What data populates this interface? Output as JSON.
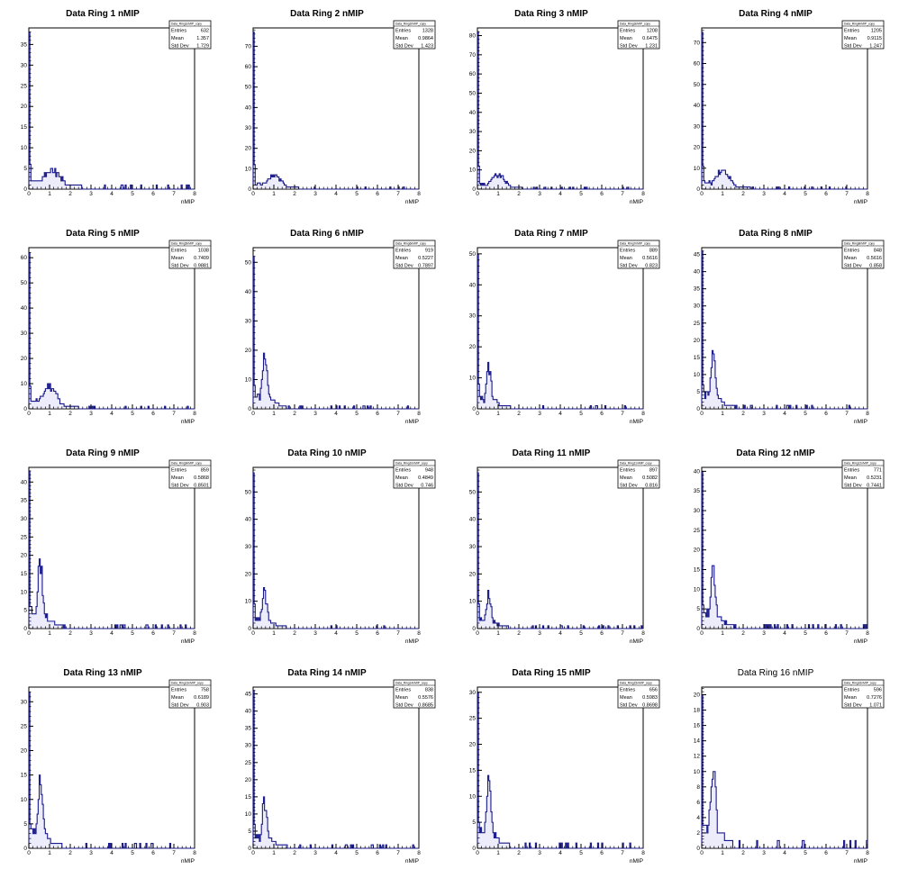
{
  "colors": {
    "hist_line": "#1a1a8c",
    "hist_fill": "#c8c8f0",
    "axis": "#000000",
    "background": "#ffffff"
  },
  "chart_data": [
    {
      "type": "bar",
      "title": "Data Ring 1 nMIP",
      "xlabel": "nMIP",
      "xlim": [
        0,
        8
      ],
      "ylim": [
        0,
        39
      ],
      "yticks": [
        0,
        5,
        10,
        15,
        20,
        25,
        30,
        35
      ],
      "xticks": [
        0,
        1,
        2,
        3,
        4,
        5,
        6,
        7,
        8
      ],
      "stats": {
        "name": "Data_Ring1nMIP_copy",
        "entries": "632",
        "mean": "1.357",
        "stddev": "1.729"
      },
      "shape": "r1",
      "peak0": 38,
      "bump_y": 4.5
    },
    {
      "type": "bar",
      "title": "Data Ring 2 nMIP",
      "xlabel": "nMIP",
      "xlim": [
        0,
        8
      ],
      "ylim": [
        0,
        79
      ],
      "yticks": [
        0,
        10,
        20,
        30,
        40,
        50,
        60,
        70
      ],
      "xticks": [
        0,
        1,
        2,
        3,
        4,
        5,
        6,
        7,
        8
      ],
      "stats": {
        "name": "Data_Ring2nMIP_copy",
        "entries": "1328",
        "mean": "0.9864",
        "stddev": "1.423"
      },
      "shape": "wide",
      "peak0": 77,
      "bump_y": 7
    },
    {
      "type": "bar",
      "title": "Data Ring 3 nMIP",
      "xlabel": "nMIP",
      "xlim": [
        0,
        8
      ],
      "ylim": [
        0,
        84
      ],
      "yticks": [
        0,
        10,
        20,
        30,
        40,
        50,
        60,
        70,
        80
      ],
      "xticks": [
        0,
        1,
        2,
        3,
        4,
        5,
        6,
        7,
        8
      ],
      "stats": {
        "name": "Data_Ring3nMIP_copy",
        "entries": "1208",
        "mean": "0.6475",
        "stddev": "1.231"
      },
      "shape": "wide",
      "peak0": 82,
      "bump_y": 7
    },
    {
      "type": "bar",
      "title": "Data Ring 4 nMIP",
      "xlabel": "nMIP",
      "xlim": [
        0,
        8
      ],
      "ylim": [
        0,
        77
      ],
      "yticks": [
        0,
        10,
        20,
        30,
        40,
        50,
        60,
        70
      ],
      "xticks": [
        0,
        1,
        2,
        3,
        4,
        5,
        6,
        7,
        8
      ],
      "stats": {
        "name": "Data_Ring4nMIP_copy",
        "entries": "1205",
        "mean": "0.9115",
        "stddev": "1.247"
      },
      "shape": "wide",
      "peak0": 75,
      "bump_y": 9
    },
    {
      "type": "bar",
      "title": "Data Ring 5 nMIP",
      "xlabel": "nMIP",
      "xlim": [
        0,
        8
      ],
      "ylim": [
        0,
        64
      ],
      "yticks": [
        0,
        10,
        20,
        30,
        40,
        50,
        60
      ],
      "xticks": [
        0,
        1,
        2,
        3,
        4,
        5,
        6,
        7,
        8
      ],
      "stats": {
        "name": "Data_Ring5nMIP_copy",
        "entries": "1038",
        "mean": "0.7409",
        "stddev": "0.9881"
      },
      "shape": "wide",
      "peak0": 62,
      "bump_y": 9
    },
    {
      "type": "bar",
      "title": "Data Ring 6 nMIP",
      "xlabel": "nMIP",
      "xlim": [
        0,
        8
      ],
      "ylim": [
        0,
        55
      ],
      "yticks": [
        0,
        10,
        20,
        30,
        40,
        50
      ],
      "xticks": [
        0,
        1,
        2,
        3,
        4,
        5,
        6,
        7,
        8
      ],
      "stats": {
        "name": "Data_Ring6nMIP_copy",
        "entries": "919",
        "mean": "0.5227",
        "stddev": "0.7897"
      },
      "shape": "narrow",
      "peak0": 52,
      "bump_y": 17
    },
    {
      "type": "bar",
      "title": "Data Ring 7 nMIP",
      "xlabel": "nMIP",
      "xlim": [
        0,
        8
      ],
      "ylim": [
        0,
        52
      ],
      "yticks": [
        0,
        10,
        20,
        30,
        40,
        50
      ],
      "xticks": [
        0,
        1,
        2,
        3,
        4,
        5,
        6,
        7,
        8
      ],
      "stats": {
        "name": "Data_Ring7nMIP_copy",
        "entries": "889",
        "mean": "0.5616",
        "stddev": "0.823"
      },
      "shape": "narrow",
      "peak0": 50,
      "bump_y": 13
    },
    {
      "type": "bar",
      "title": "Data Ring 8 nMIP",
      "xlabel": "nMIP",
      "xlim": [
        0,
        8
      ],
      "ylim": [
        0,
        47
      ],
      "yticks": [
        0,
        5,
        10,
        15,
        20,
        25,
        30,
        35,
        40,
        45
      ],
      "xticks": [
        0,
        1,
        2,
        3,
        4,
        5,
        6,
        7,
        8
      ],
      "stats": {
        "name": "Data_Ring8nMIP_copy",
        "entries": "848",
        "mean": "0.5616",
        "stddev": "0.858"
      },
      "shape": "narrow",
      "peak0": 46,
      "bump_y": 15
    },
    {
      "type": "bar",
      "title": "Data Ring 9 nMIP",
      "xlabel": "nMIP",
      "xlim": [
        0,
        8
      ],
      "ylim": [
        0,
        44
      ],
      "yticks": [
        0,
        5,
        10,
        15,
        20,
        25,
        30,
        35,
        40
      ],
      "xticks": [
        0,
        1,
        2,
        3,
        4,
        5,
        6,
        7,
        8
      ],
      "stats": {
        "name": "Data_Ring9nMIP_copy",
        "entries": "859",
        "mean": "0.5868",
        "stddev": "0.8501"
      },
      "shape": "narrow",
      "peak0": 43,
      "bump_y": 17
    },
    {
      "type": "bar",
      "title": "Data Ring 10 nMIP",
      "xlabel": "nMIP",
      "xlim": [
        0,
        8
      ],
      "ylim": [
        0,
        59
      ],
      "yticks": [
        0,
        10,
        20,
        30,
        40,
        50
      ],
      "xticks": [
        0,
        1,
        2,
        3,
        4,
        5,
        6,
        7,
        8
      ],
      "stats": {
        "name": "Data_Ring10nMIP_copy",
        "entries": "948",
        "mean": "0.4849",
        "stddev": "0.746"
      },
      "shape": "narrow",
      "peak0": 57,
      "bump_y": 13
    },
    {
      "type": "bar",
      "title": "Data Ring 11 nMIP",
      "xlabel": "nMIP",
      "xlim": [
        0,
        8
      ],
      "ylim": [
        0,
        59
      ],
      "yticks": [
        0,
        10,
        20,
        30,
        40,
        50
      ],
      "xticks": [
        0,
        1,
        2,
        3,
        4,
        5,
        6,
        7,
        8
      ],
      "stats": {
        "name": "Data_Ring11nMIP_copy",
        "entries": "897",
        "mean": "0.5082",
        "stddev": "0.816"
      },
      "shape": "narrow",
      "peak0": 57,
      "bump_y": 12
    },
    {
      "type": "bar",
      "title": "Data Ring 12 nMIP",
      "xlabel": "nMIP",
      "xlim": [
        0,
        8
      ],
      "ylim": [
        0,
        41
      ],
      "yticks": [
        0,
        5,
        10,
        15,
        20,
        25,
        30,
        35,
        40
      ],
      "xticks": [
        0,
        1,
        2,
        3,
        4,
        5,
        6,
        7,
        8
      ],
      "stats": {
        "name": "Data_Ring12nMIP_copy",
        "entries": "771",
        "mean": "0.5231",
        "stddev": "0.7441"
      },
      "shape": "narrow",
      "peak0": 40,
      "bump_y": 14
    },
    {
      "type": "bar",
      "title": "Data Ring 13 nMIP",
      "xlabel": "nMIP",
      "xlim": [
        0,
        8
      ],
      "ylim": [
        0,
        33
      ],
      "yticks": [
        0,
        5,
        10,
        15,
        20,
        25,
        30
      ],
      "xticks": [
        0,
        1,
        2,
        3,
        4,
        5,
        6,
        7,
        8
      ],
      "stats": {
        "name": "Data_Ring13nMIP_copy",
        "entries": "758",
        "mean": "0.6189",
        "stddev": "0.903"
      },
      "shape": "narrow",
      "peak0": 32,
      "bump_y": 13
    },
    {
      "type": "bar",
      "title": "Data Ring 14 nMIP",
      "xlabel": "nMIP",
      "xlim": [
        0,
        8
      ],
      "ylim": [
        0,
        47
      ],
      "yticks": [
        0,
        5,
        10,
        15,
        20,
        25,
        30,
        35,
        40,
        45
      ],
      "xticks": [
        0,
        1,
        2,
        3,
        4,
        5,
        6,
        7,
        8
      ],
      "stats": {
        "name": "Data_Ring14nMIP_copy",
        "entries": "838",
        "mean": "0.5576",
        "stddev": "0.8685"
      },
      "shape": "narrow",
      "peak0": 46,
      "bump_y": 13
    },
    {
      "type": "bar",
      "title": "Data Ring 15 nMIP",
      "xlabel": "nMIP",
      "xlim": [
        0,
        8
      ],
      "ylim": [
        0,
        31
      ],
      "yticks": [
        0,
        5,
        10,
        15,
        20,
        25,
        30
      ],
      "xticks": [
        0,
        1,
        2,
        3,
        4,
        5,
        6,
        7,
        8
      ],
      "stats": {
        "name": "Data_Ring15nMIP_copy",
        "entries": "656",
        "mean": "0.5983",
        "stddev": "0.8698"
      },
      "shape": "narrow",
      "peak0": 30,
      "bump_y": 12
    },
    {
      "type": "bar",
      "title": "Data Ring 16 nMIP",
      "xlabel": "nMIP",
      "xlim": [
        0,
        8
      ],
      "ylim": [
        0,
        21
      ],
      "yticks": [
        0,
        2,
        4,
        6,
        8,
        10,
        12,
        14,
        16,
        18,
        20
      ],
      "xticks": [
        0,
        1,
        2,
        3,
        4,
        5,
        6,
        7,
        8
      ],
      "stats": {
        "name": "Data_Ring16nMIP_copy",
        "entries": "596",
        "mean": "0.7276",
        "stddev": "1.071"
      },
      "shape": "narrow",
      "peak0": 20,
      "bump_y": 11
    }
  ]
}
